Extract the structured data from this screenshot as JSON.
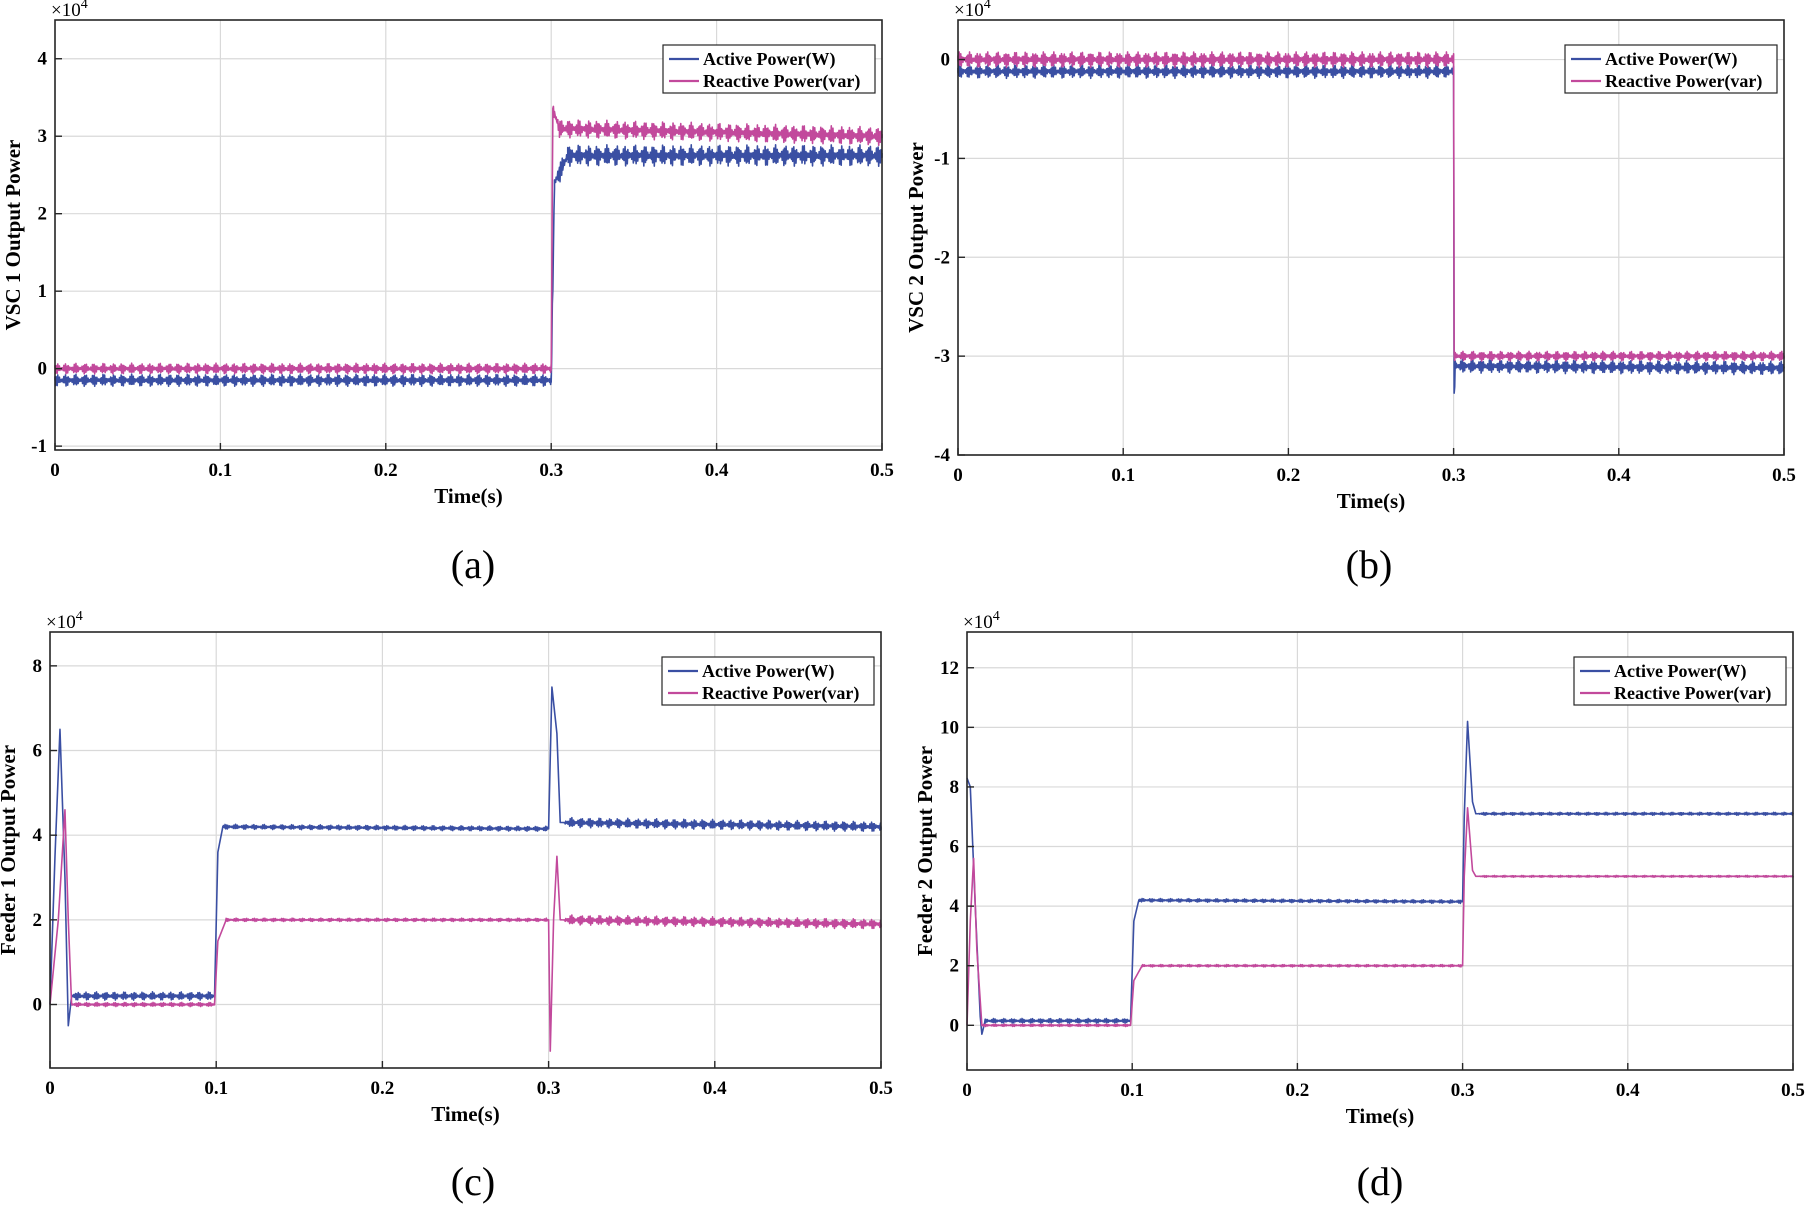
{
  "colors": {
    "active": "#3a4fa3",
    "reactive": "#c2499c"
  },
  "chart_data": [
    {
      "type": "line",
      "subplot_label": "(a)",
      "ylabel": "VSC 1 Output Power",
      "xlabel": "Time(s)",
      "y_exponent_label": "×10",
      "y_exponent_power": "4",
      "xlim": [
        0,
        0.5
      ],
      "ylim": [
        -1.05,
        4.5
      ],
      "x_ticks": [
        0,
        0.1,
        0.2,
        0.3,
        0.4,
        0.5
      ],
      "x_tick_labels": [
        "0",
        "0.1",
        "0.2",
        "0.3",
        "0.4",
        "0.5"
      ],
      "y_ticks": [
        -1,
        0,
        1,
        2,
        3,
        4
      ],
      "y_tick_labels": [
        "-1",
        "0",
        "1",
        "2",
        "3",
        "4"
      ],
      "legend": [
        "Active Power(W)",
        "Reactive Power(var)"
      ],
      "legend_position": "top-right",
      "series": [
        {
          "name": "Active Power(W)",
          "key": "active",
          "points": [
            [
              0,
              -0.15
            ],
            [
              0.299,
              -0.15
            ],
            [
              0.3,
              -0.15
            ],
            [
              0.302,
              2.4
            ],
            [
              0.31,
              2.75
            ],
            [
              0.5,
              2.75
            ]
          ],
          "ripple": [
            [
              0,
              0.3,
              0.08
            ],
            [
              0.3,
              0.5,
              0.14
            ]
          ]
        },
        {
          "name": "Reactive Power(var)",
          "key": "reactive",
          "points": [
            [
              0,
              0.0
            ],
            [
              0.299,
              0.0
            ],
            [
              0.3,
              0.0
            ],
            [
              0.301,
              3.35
            ],
            [
              0.305,
              3.1
            ],
            [
              0.5,
              3.0
            ]
          ],
          "ripple": [
            [
              0,
              0.3,
              0.07
            ],
            [
              0.3,
              0.5,
              0.12
            ]
          ]
        }
      ]
    },
    {
      "type": "line",
      "subplot_label": "(b)",
      "ylabel": "VSC 2 Output Power",
      "xlabel": "Time(s)",
      "y_exponent_label": "×10",
      "y_exponent_power": "4",
      "xlim": [
        0,
        0.5
      ],
      "ylim": [
        -4,
        0.4
      ],
      "x_ticks": [
        0,
        0.1,
        0.2,
        0.3,
        0.4,
        0.5
      ],
      "x_tick_labels": [
        "0",
        "0.1",
        "0.2",
        "0.3",
        "0.4",
        "0.5"
      ],
      "y_ticks": [
        -4,
        -3,
        -2,
        -1,
        0
      ],
      "y_tick_labels": [
        "-4",
        "-3",
        "-2",
        "-1",
        "0"
      ],
      "legend": [
        "Active Power(W)",
        "Reactive Power(var)"
      ],
      "legend_position": "top-right",
      "series": [
        {
          "name": "Active Power(W)",
          "key": "active",
          "points": [
            [
              0,
              -0.12
            ],
            [
              0.299,
              -0.12
            ],
            [
              0.3,
              -0.12
            ],
            [
              0.3,
              -3.55
            ],
            [
              0.301,
              -3.1
            ],
            [
              0.5,
              -3.12
            ]
          ],
          "ripple": [
            [
              0,
              0.3,
              0.07
            ],
            [
              0.3,
              0.5,
              0.07
            ]
          ]
        },
        {
          "name": "Reactive Power(var)",
          "key": "reactive",
          "points": [
            [
              0,
              0.0
            ],
            [
              0.299,
              0.0
            ],
            [
              0.3,
              0.0
            ],
            [
              0.3,
              -3.0
            ],
            [
              0.5,
              -3.0
            ]
          ],
          "ripple": [
            [
              0,
              0.3,
              0.08
            ],
            [
              0.3,
              0.5,
              0.05
            ]
          ]
        }
      ]
    },
    {
      "type": "line",
      "subplot_label": "(c)",
      "ylabel": "Feeder 1 Output Power",
      "xlabel": "Time(s)",
      "y_exponent_label": "×10",
      "y_exponent_power": "4",
      "xlim": [
        0,
        0.5
      ],
      "ylim": [
        -1.5,
        8.8
      ],
      "x_ticks": [
        0,
        0.1,
        0.2,
        0.3,
        0.4,
        0.5
      ],
      "x_tick_labels": [
        "0",
        "0.1",
        "0.2",
        "0.3",
        "0.4",
        "0.5"
      ],
      "y_ticks": [
        0,
        2,
        4,
        6,
        8
      ],
      "y_tick_labels": [
        "0",
        "2",
        "4",
        "6",
        "8"
      ],
      "legend": [
        "Active Power(W)",
        "Reactive Power(var)"
      ],
      "legend_position": "top-right",
      "series": [
        {
          "name": "Active Power(W)",
          "key": "active",
          "points": [
            [
              0,
              0
            ],
            [
              0.003,
              3.5
            ],
            [
              0.006,
              6.5
            ],
            [
              0.009,
              3.0
            ],
            [
              0.011,
              -0.5
            ],
            [
              0.013,
              0.2
            ],
            [
              0.099,
              0.2
            ],
            [
              0.101,
              3.6
            ],
            [
              0.104,
              4.2
            ],
            [
              0.299,
              4.15
            ],
            [
              0.3,
              4.15
            ],
            [
              0.302,
              7.5
            ],
            [
              0.305,
              6.4
            ],
            [
              0.307,
              4.3
            ],
            [
              0.5,
              4.2
            ]
          ],
          "ripple": [
            [
              0.013,
              0.099,
              0.1
            ],
            [
              0.104,
              0.299,
              0.06
            ],
            [
              0.31,
              0.5,
              0.12
            ]
          ]
        },
        {
          "name": "Reactive Power(var)",
          "key": "reactive",
          "points": [
            [
              0,
              0
            ],
            [
              0.005,
              2.0
            ],
            [
              0.009,
              4.6
            ],
            [
              0.011,
              2.0
            ],
            [
              0.013,
              0.0
            ],
            [
              0.099,
              0.0
            ],
            [
              0.101,
              1.5
            ],
            [
              0.106,
              2.0
            ],
            [
              0.299,
              2.0
            ],
            [
              0.3,
              2.0
            ],
            [
              0.301,
              -1.1
            ],
            [
              0.303,
              2.0
            ],
            [
              0.305,
              3.5
            ],
            [
              0.307,
              2.0
            ],
            [
              0.5,
              1.9
            ]
          ],
          "ripple": [
            [
              0.013,
              0.099,
              0.05
            ],
            [
              0.106,
              0.299,
              0.04
            ],
            [
              0.31,
              0.5,
              0.12
            ]
          ]
        }
      ]
    },
    {
      "type": "line",
      "subplot_label": "(d)",
      "ylabel": "Feeder 2 Output Power",
      "xlabel": "Time(s)",
      "y_exponent_label": "×10",
      "y_exponent_power": "4",
      "xlim": [
        0,
        0.5
      ],
      "ylim": [
        -1.5,
        13.2
      ],
      "x_ticks": [
        0,
        0.1,
        0.2,
        0.3,
        0.4,
        0.5
      ],
      "x_tick_labels": [
        "0",
        "0.1",
        "0.2",
        "0.3",
        "0.4",
        "0.5"
      ],
      "y_ticks": [
        0,
        2,
        4,
        6,
        8,
        10,
        12
      ],
      "y_tick_labels": [
        "0",
        "2",
        "4",
        "6",
        "8",
        "10",
        "12"
      ],
      "legend": [
        "Active Power(W)",
        "Reactive Power(var)"
      ],
      "legend_position": "top-right",
      "series": [
        {
          "name": "Active Power(W)",
          "key": "active",
          "points": [
            [
              0,
              8.3
            ],
            [
              0.002,
              8.0
            ],
            [
              0.005,
              4.0
            ],
            [
              0.008,
              0.3
            ],
            [
              0.009,
              -0.3
            ],
            [
              0.011,
              0.15
            ],
            [
              0.099,
              0.15
            ],
            [
              0.101,
              3.5
            ],
            [
              0.104,
              4.2
            ],
            [
              0.299,
              4.15
            ],
            [
              0.3,
              4.15
            ],
            [
              0.301,
              7.0
            ],
            [
              0.303,
              10.2
            ],
            [
              0.306,
              7.5
            ],
            [
              0.308,
              7.1
            ],
            [
              0.5,
              7.1
            ]
          ],
          "ripple": [
            [
              0.011,
              0.099,
              0.08
            ],
            [
              0.104,
              0.299,
              0.06
            ],
            [
              0.31,
              0.5,
              0.05
            ]
          ]
        },
        {
          "name": "Reactive Power(var)",
          "key": "reactive",
          "points": [
            [
              0,
              0.0
            ],
            [
              0.002,
              3.5
            ],
            [
              0.004,
              5.6
            ],
            [
              0.006,
              2.5
            ],
            [
              0.009,
              0.0
            ],
            [
              0.099,
              0.0
            ],
            [
              0.101,
              1.5
            ],
            [
              0.106,
              2.0
            ],
            [
              0.299,
              2.0
            ],
            [
              0.3,
              2.0
            ],
            [
              0.301,
              5.0
            ],
            [
              0.303,
              7.3
            ],
            [
              0.306,
              5.2
            ],
            [
              0.308,
              5.0
            ],
            [
              0.5,
              5.0
            ]
          ],
          "ripple": [
            [
              0.009,
              0.099,
              0.04
            ],
            [
              0.106,
              0.299,
              0.04
            ],
            [
              0.31,
              0.5,
              0.03
            ]
          ]
        }
      ]
    }
  ]
}
